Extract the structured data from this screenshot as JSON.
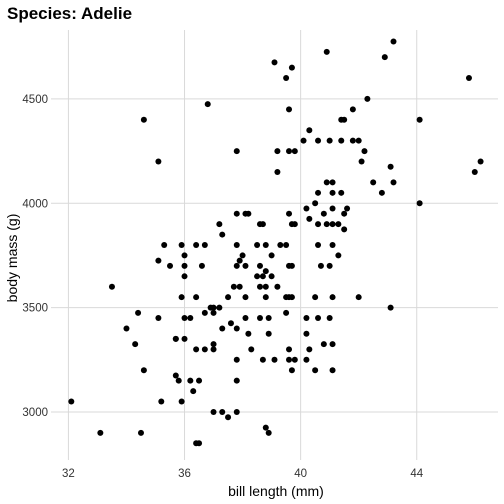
{
  "chart_data": {
    "type": "scatter",
    "title": "Species: Adelie",
    "xlabel": "bill length (mm)",
    "ylabel": "body mass (g)",
    "xlim": [
      31.4,
      46.8
    ],
    "ylim": [
      2770,
      4830
    ],
    "x_ticks": [
      32,
      36,
      40,
      44
    ],
    "y_ticks": [
      3000,
      3500,
      4000,
      4500
    ],
    "x_tick_labels": [
      "32",
      "36",
      "40",
      "44"
    ],
    "y_tick_labels": [
      "3000",
      "3500",
      "4000",
      "4500"
    ],
    "grid": true,
    "legend": "none",
    "point_color": "#000000",
    "points": [
      [
        39.1,
        4675
      ],
      [
        39.5,
        4600
      ],
      [
        39.7,
        4650
      ],
      [
        40.9,
        4725
      ],
      [
        43.2,
        4775
      ],
      [
        42.9,
        4700
      ],
      [
        45.8,
        4600
      ],
      [
        36.8,
        4475
      ],
      [
        34.6,
        4400
      ],
      [
        39.6,
        4450
      ],
      [
        42.3,
        4500
      ],
      [
        44.1,
        4400
      ],
      [
        41.8,
        4450
      ],
      [
        35.1,
        4200
      ],
      [
        37.8,
        4250
      ],
      [
        39.2,
        4250
      ],
      [
        39.6,
        4250
      ],
      [
        40.1,
        4300
      ],
      [
        40.3,
        4350
      ],
      [
        40.6,
        4300
      ],
      [
        41.0,
        4300
      ],
      [
        41.4,
        4300
      ],
      [
        41.4,
        4400
      ],
      [
        41.5,
        4400
      ],
      [
        41.8,
        4300
      ],
      [
        42.2,
        4250
      ],
      [
        42.1,
        4200
      ],
      [
        42.0,
        4300
      ],
      [
        43.1,
        4175
      ],
      [
        43.2,
        4100
      ],
      [
        46.0,
        4150
      ],
      [
        46.2,
        4200
      ],
      [
        39.2,
        4150
      ],
      [
        39.8,
        4250
      ],
      [
        41.1,
        4100
      ],
      [
        40.9,
        4100
      ],
      [
        41.1,
        4050
      ],
      [
        41.4,
        4050
      ],
      [
        42.5,
        4100
      ],
      [
        42.8,
        4050
      ],
      [
        44.1,
        4000
      ],
      [
        40.2,
        3975
      ],
      [
        40.5,
        4000
      ],
      [
        40.8,
        3950
      ],
      [
        40.6,
        4050
      ],
      [
        41.1,
        3975
      ],
      [
        41.6,
        3975
      ],
      [
        41.5,
        3950
      ],
      [
        41.3,
        3900
      ],
      [
        40.3,
        3925
      ],
      [
        40.6,
        3900
      ],
      [
        40.9,
        3900
      ],
      [
        41.1,
        3900
      ],
      [
        41.5,
        3875
      ],
      [
        37.2,
        3900
      ],
      [
        37.8,
        3950
      ],
      [
        38.1,
        3950
      ],
      [
        38.2,
        3950
      ],
      [
        38.6,
        3900
      ],
      [
        38.7,
        3900
      ],
      [
        39.3,
        3800
      ],
      [
        39.6,
        3950
      ],
      [
        39.7,
        3900
      ],
      [
        39.8,
        3900
      ],
      [
        40.6,
        3800
      ],
      [
        41.1,
        3800
      ],
      [
        41.3,
        3750
      ],
      [
        41.0,
        3700
      ],
      [
        35.3,
        3800
      ],
      [
        35.9,
        3800
      ],
      [
        36.0,
        3750
      ],
      [
        36.4,
        3800
      ],
      [
        36.7,
        3800
      ],
      [
        37.8,
        3800
      ],
      [
        38.0,
        3750
      ],
      [
        38.5,
        3800
      ],
      [
        38.8,
        3800
      ],
      [
        39.0,
        3750
      ],
      [
        39.5,
        3800
      ],
      [
        37.3,
        3850
      ],
      [
        37.8,
        3700
      ],
      [
        37.9,
        3725
      ],
      [
        38.1,
        3700
      ],
      [
        35.1,
        3725
      ],
      [
        35.5,
        3700
      ],
      [
        36.0,
        3700
      ],
      [
        36.6,
        3700
      ],
      [
        38.6,
        3700
      ],
      [
        38.8,
        3675
      ],
      [
        39.6,
        3700
      ],
      [
        36.0,
        3650
      ],
      [
        38.5,
        3650
      ],
      [
        38.7,
        3650
      ],
      [
        39.0,
        3650
      ],
      [
        39.7,
        3700
      ],
      [
        39.5,
        3550
      ],
      [
        40.7,
        3700
      ],
      [
        33.5,
        3600
      ],
      [
        37.7,
        3600
      ],
      [
        37.9,
        3600
      ],
      [
        38.6,
        3600
      ],
      [
        38.8,
        3600
      ],
      [
        39.2,
        3600
      ],
      [
        34.4,
        3475
      ],
      [
        35.9,
        3550
      ],
      [
        36.4,
        3550
      ],
      [
        37.0,
        3500
      ],
      [
        37.5,
        3550
      ],
      [
        38.1,
        3550
      ],
      [
        38.8,
        3550
      ],
      [
        39.6,
        3550
      ],
      [
        39.7,
        3550
      ],
      [
        40.5,
        3550
      ],
      [
        41.1,
        3550
      ],
      [
        42.0,
        3550
      ],
      [
        43.1,
        3500
      ],
      [
        36.2,
        3450
      ],
      [
        37.2,
        3500
      ],
      [
        37.0,
        3475
      ],
      [
        37.6,
        3425
      ],
      [
        38.1,
        3450
      ],
      [
        38.6,
        3450
      ],
      [
        38.9,
        3450
      ],
      [
        35.1,
        3450
      ],
      [
        36.0,
        3450
      ],
      [
        36.7,
        3475
      ],
      [
        36.9,
        3500
      ],
      [
        40.2,
        3450
      ],
      [
        40.6,
        3450
      ],
      [
        41.0,
        3450
      ],
      [
        39.5,
        3475
      ],
      [
        34.0,
        3400
      ],
      [
        35.7,
        3350
      ],
      [
        36.0,
        3350
      ],
      [
        37.3,
        3400
      ],
      [
        37.8,
        3400
      ],
      [
        38.2,
        3375
      ],
      [
        38.9,
        3375
      ],
      [
        36.7,
        3300
      ],
      [
        37.0,
        3300
      ],
      [
        38.3,
        3300
      ],
      [
        39.6,
        3300
      ],
      [
        40.2,
        3375
      ],
      [
        40.3,
        3300
      ],
      [
        40.8,
        3325
      ],
      [
        41.1,
        3325
      ],
      [
        34.3,
        3325
      ],
      [
        35.7,
        3350
      ],
      [
        36.4,
        3300
      ],
      [
        37.0,
        3325
      ],
      [
        39.1,
        3250
      ],
      [
        39.6,
        3250
      ],
      [
        40.2,
        3250
      ],
      [
        34.6,
        3200
      ],
      [
        37.8,
        3250
      ],
      [
        38.7,
        3250
      ],
      [
        39.8,
        3250
      ],
      [
        40.5,
        3200
      ],
      [
        39.7,
        3200
      ],
      [
        41.1,
        3200
      ],
      [
        35.7,
        3175
      ],
      [
        35.8,
        3150
      ],
      [
        36.2,
        3150
      ],
      [
        36.5,
        3150
      ],
      [
        37.8,
        3150
      ],
      [
        36.3,
        3100
      ],
      [
        35.9,
        3050
      ],
      [
        35.2,
        3050
      ],
      [
        32.1,
        3050
      ],
      [
        37.0,
        3000
      ],
      [
        37.3,
        3000
      ],
      [
        37.5,
        2975
      ],
      [
        37.8,
        3000
      ],
      [
        38.8,
        2925
      ],
      [
        33.1,
        2900
      ],
      [
        34.5,
        2900
      ],
      [
        38.9,
        2900
      ],
      [
        36.4,
        2850
      ],
      [
        36.5,
        2850
      ]
    ]
  }
}
